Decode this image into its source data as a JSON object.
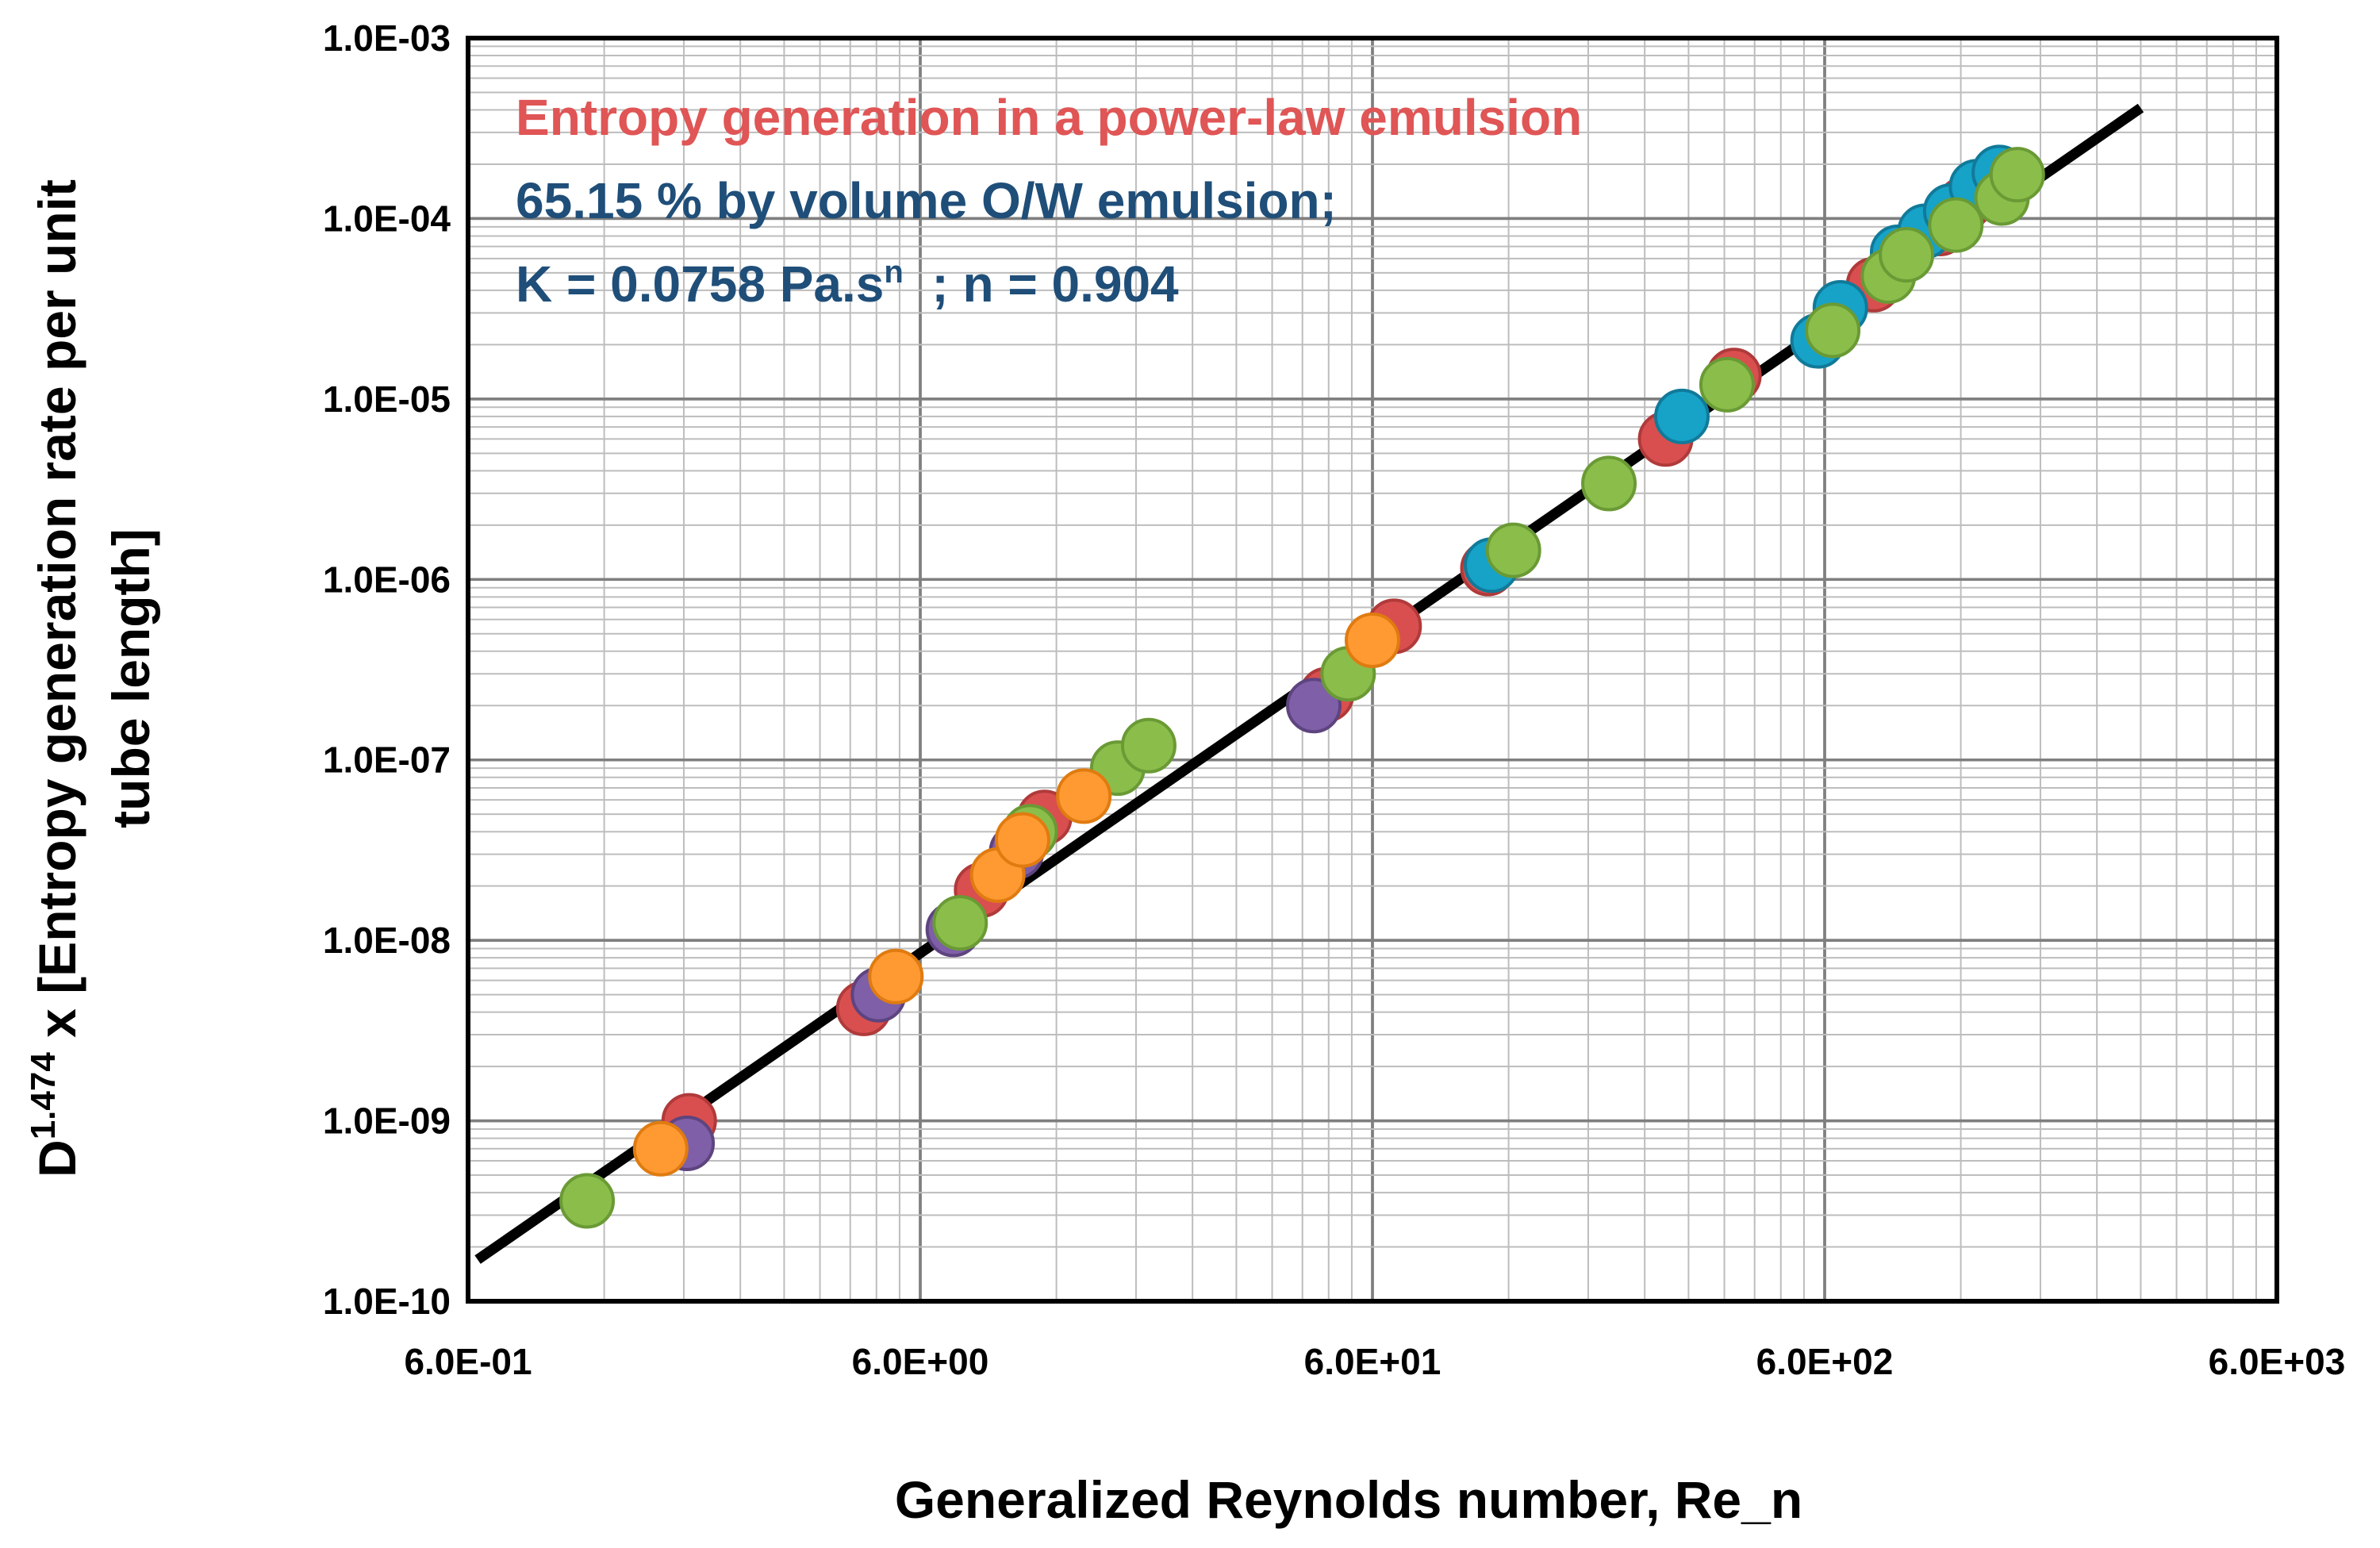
{
  "chart_data": {
    "type": "scatter",
    "title": "Entropy generation in a power-law emulsion",
    "annotations": {
      "line1": "Entropy generation in a power-law emulsion",
      "line2": "65.15 % by volume O/W emulsion;",
      "line3_prefix": "K = 0.0758 Pa.s",
      "line3_sup": "n",
      "line3_suffix": "  ; n = 0.904"
    },
    "colors": {
      "title": "#e05555",
      "subtitle": "#1f4e79",
      "fit_line": "#000000"
    },
    "xlabel": "Generalized Reynolds number, Re_n",
    "ylabel": {
      "prefix": "D",
      "sup": "1.474",
      "rest_line1": " x [Entropy generation rate per unit",
      "line2": "tube length]"
    },
    "x_scale": "log",
    "y_scale": "log",
    "xlim": [
      0.6,
      6000
    ],
    "ylim": [
      1e-10,
      0.001
    ],
    "x_ticks": [
      0.6,
      6,
      60,
      600,
      6000
    ],
    "x_tick_labels": [
      "6.0E-01",
      "6.0E+00",
      "6.0E+01",
      "6.0E+02",
      "6.0E+03"
    ],
    "y_ticks": [
      1e-10,
      1e-09,
      1e-08,
      1e-07,
      1e-06,
      1e-05,
      0.0001,
      0.001
    ],
    "y_tick_labels": [
      "1.0E-10",
      "1.0E-09",
      "1.0E-08",
      "1.0E-07",
      "1.0E-06",
      "1.0E-05",
      "1.0E-04",
      "1.0E-03"
    ],
    "grid": true,
    "fit_line": {
      "x": [
        0.63,
        3000
      ],
      "y": [
        1.7e-10,
        0.00041
      ]
    },
    "series": [
      {
        "name": "Red",
        "color": "#d94f4f",
        "stroke": "#b03a3a",
        "points": [
          [
            1.85,
            1e-09
          ],
          [
            4.5,
            4.2e-09
          ],
          [
            8.2,
            1.9e-08
          ],
          [
            11.3,
            4.8e-08
          ],
          [
            47.5,
            2.3e-07
          ],
          [
            67,
            5.5e-07
          ],
          [
            108,
            1.15e-06
          ],
          [
            267,
            6e-06
          ],
          [
            378,
            1.35e-05
          ],
          [
            770,
            4.3e-05
          ],
          [
            1080,
            8.8e-05
          ],
          [
            1220,
            0.00012
          ],
          [
            1400,
            0.00016
          ]
        ]
      },
      {
        "name": "Blue",
        "color": "#17a2c8",
        "stroke": "#117a99",
        "points": [
          [
            110,
            1.2e-06
          ],
          [
            290,
            8e-06
          ],
          [
            580,
            2.1e-05
          ],
          [
            650,
            3.2e-05
          ],
          [
            870,
            6.5e-05
          ],
          [
            1000,
            8.5e-05
          ],
          [
            1140,
            0.00011
          ],
          [
            1300,
            0.00015
          ],
          [
            1460,
            0.00018
          ]
        ]
      },
      {
        "name": "Purple",
        "color": "#7e5fa8",
        "stroke": "#5e447f",
        "points": [
          [
            1.83,
            7.5e-10
          ],
          [
            4.85,
            5e-09
          ],
          [
            7.1,
            1.15e-08
          ],
          [
            9.8,
            3.1e-08
          ],
          [
            44.5,
            2e-07
          ]
        ]
      },
      {
        "name": "Green",
        "color": "#8bbd4b",
        "stroke": "#6a9a35",
        "points": [
          [
            1.1,
            3.6e-10
          ],
          [
            7.35,
            1.25e-08
          ],
          [
            10.5,
            4e-08
          ],
          [
            16.4,
            9e-08
          ],
          [
            19.2,
            1.2e-07
          ],
          [
            53,
            3e-07
          ],
          [
            123,
            1.45e-06
          ],
          [
            200,
            3.4e-06
          ],
          [
            365,
            1.2e-05
          ],
          [
            625,
            2.4e-05
          ],
          [
            830,
            4.8e-05
          ],
          [
            910,
            6.3e-05
          ],
          [
            1170,
            9.2e-05
          ],
          [
            1480,
            0.00013
          ],
          [
            1600,
            0.000175
          ]
        ]
      },
      {
        "name": "Orange",
        "color": "#ff9a33",
        "stroke": "#e07b10",
        "points": [
          [
            1.6,
            7e-10
          ],
          [
            5.3,
            6.3e-09
          ],
          [
            8.9,
            2.3e-08
          ],
          [
            10.1,
            3.6e-08
          ],
          [
            13.8,
            6.3e-08
          ],
          [
            60,
            4.6e-07
          ]
        ]
      }
    ]
  }
}
